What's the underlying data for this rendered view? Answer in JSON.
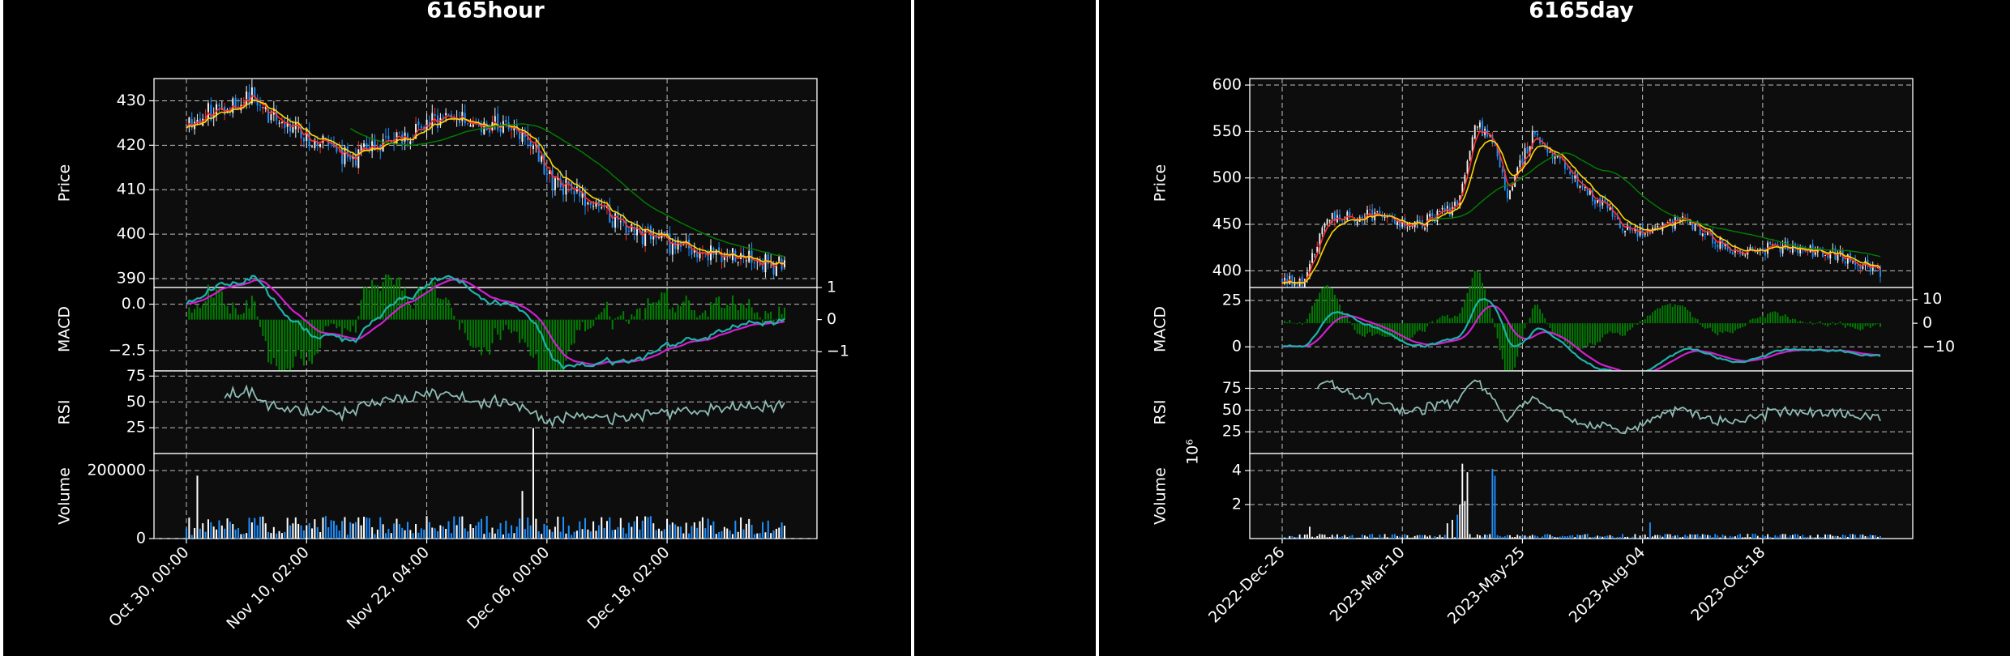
{
  "figure": {
    "background": "#000000",
    "plot_background": "#0d0d0d",
    "grid_color": "#bfbfbf"
  },
  "colors": {
    "candle_up": "#f2f2f2",
    "candle_down": "#1e90ff",
    "ma_fast": "#ff3030",
    "ma_mid": "#ffd700",
    "ma_slow": "#008000",
    "macd_line": "#20b2aa",
    "signal_line": "#d020d0",
    "hist": "#008000",
    "rsi_line": "#8fbcb4",
    "vol_up": "#ffffff",
    "vol_down": "#1e90ff"
  },
  "chart_data": [
    {
      "type": "candlestick",
      "title": "6165hour",
      "seed": 11,
      "n": 220,
      "x_ticks": [
        "Oct 30, 00:00",
        "Nov 10, 02:00",
        "Nov 22, 04:00",
        "Dec 06, 00:00",
        "Dec 18, 02:00"
      ],
      "x_tick_index": [
        0,
        44,
        88,
        132,
        176
      ],
      "price": {
        "ylabel": "Price",
        "ylim": [
          388,
          435
        ],
        "yticks": [
          390,
          400,
          410,
          420,
          430
        ],
        "path_x": [
          0,
          10,
          24,
          30,
          50,
          60,
          80,
          92,
          110,
          125,
          132,
          150,
          165,
          180,
          200,
          215
        ],
        "path_y": [
          425,
          428,
          431,
          427,
          420,
          417,
          422,
          426,
          425,
          423,
          413,
          406,
          400,
          397,
          395,
          393
        ],
        "noise": 2.2,
        "ma_slow_start": [
          60,
          424
        ]
      },
      "macd": {
        "ylabel": "MACD",
        "ylim": [
          -3.6,
          0.9
        ],
        "yticks": [
          0.0,
          -2.5
        ],
        "ytick_labels": [
          "0.0",
          "−2.5"
        ],
        "right_ylim": [
          -1.6,
          1.0
        ],
        "right_yticks": [
          1,
          0,
          -1
        ],
        "right_ytick_labels": [
          "1",
          "0",
          "−1"
        ]
      },
      "rsi": {
        "ylabel": "RSI",
        "ylim": [
          0,
          80
        ],
        "yticks": [
          75,
          50,
          25
        ],
        "start_index": 14
      },
      "volume": {
        "ylabel": "Volume",
        "ylim": [
          0,
          250000
        ],
        "yticks": [
          200000,
          0
        ],
        "ytick_labels": [
          "200000",
          "0"
        ],
        "base": 35000,
        "spikes": [
          [
            4,
            185000
          ],
          [
            127,
            325000
          ],
          [
            123,
            140000
          ]
        ]
      }
    },
    {
      "type": "candlestick",
      "title": "6165day",
      "seed": 29,
      "n": 240,
      "x_ticks": [
        "2022-Dec-26",
        "2023-Mar-10",
        "2023-May-25",
        "2023-Aug-04",
        "2023-Oct-18"
      ],
      "x_tick_index": [
        0,
        48,
        96,
        144,
        192
      ],
      "price": {
        "ylabel": "Price",
        "ylim": [
          382,
          607
        ],
        "yticks": [
          400,
          450,
          500,
          550,
          600
        ],
        "path_x": [
          0,
          8,
          18,
          35,
          55,
          70,
          77,
          84,
          90,
          100,
          110,
          120,
          140,
          160,
          180,
          200,
          220,
          238
        ],
        "path_y": [
          390,
          385,
          455,
          460,
          450,
          470,
          560,
          540,
          480,
          545,
          520,
          490,
          440,
          455,
          420,
          425,
          420,
          400
        ],
        "noise": 7,
        "ma_slow_start": [
          60,
          450
        ]
      },
      "macd": {
        "ylabel": "MACD",
        "ylim": [
          -13,
          32
        ],
        "yticks": [
          25,
          0
        ],
        "ytick_labels": [
          "25",
          "0"
        ],
        "right_ylim": [
          -20,
          15
        ],
        "right_yticks": [
          10,
          0,
          -10
        ],
        "right_ytick_labels": [
          "10",
          "0",
          "−10"
        ]
      },
      "rsi": {
        "ylabel": "RSI",
        "ylim": [
          0,
          95
        ],
        "yticks": [
          75,
          50,
          25
        ],
        "start_index": 14
      },
      "volume": {
        "ylabel": "Volume",
        "exponent": "10⁶",
        "ylim": [
          0,
          5000000
        ],
        "yticks": [
          4000000,
          2000000
        ],
        "ytick_labels": [
          "4",
          "2"
        ],
        "base": 150000,
        "spikes": [
          [
            72,
            4400000
          ],
          [
            74,
            3900000
          ],
          [
            73,
            2200000
          ],
          [
            70,
            1400000
          ],
          [
            84,
            4100000
          ],
          [
            85,
            3700000
          ],
          [
            66,
            900000
          ],
          [
            68,
            1100000
          ],
          [
            71,
            2000000
          ],
          [
            147,
            950000
          ],
          [
            11,
            700000
          ]
        ]
      }
    }
  ]
}
